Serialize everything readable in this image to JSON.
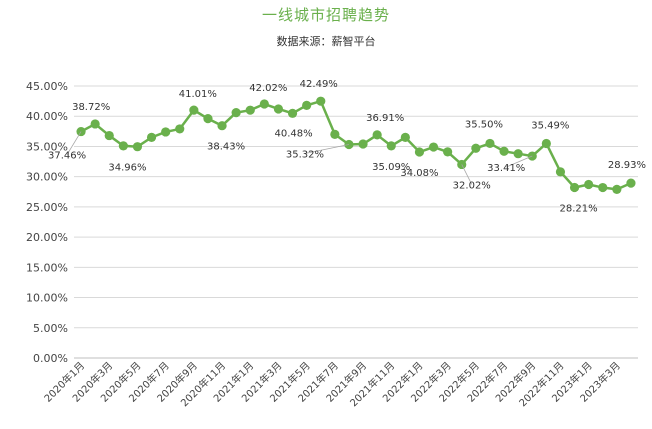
{
  "chart_data": {
    "type": "line",
    "title": "一线城市招聘趋势",
    "subtitle": "数据来源：薪智平台",
    "y_tick_labels": [
      "0.00%",
      "5.00%",
      "10.00%",
      "15.00%",
      "20.00%",
      "25.00%",
      "30.00%",
      "35.00%",
      "40.00%",
      "45.00%"
    ],
    "ylim": [
      0,
      45
    ],
    "grid": true,
    "x_tick_labels": [
      "2020年1月",
      "2020年3月",
      "2020年5月",
      "2020年7月",
      "2020年9月",
      "2020年11月",
      "2021年1月",
      "2021年3月",
      "2021年5月",
      "2021年7月",
      "2021年9月",
      "2021年11月",
      "2022年1月",
      "2022年3月",
      "2022年5月",
      "2022年7月",
      "2022年9月",
      "2022年11月",
      "2023年1月",
      "2023年3月"
    ],
    "x": [
      "2020年1月",
      "2020年2月",
      "2020年3月",
      "2020年4月",
      "2020年5月",
      "2020年6月",
      "2020年7月",
      "2020年8月",
      "2020年9月",
      "2020年10月",
      "2020年11月",
      "2020年12月",
      "2021年1月",
      "2021年2月",
      "2021年3月",
      "2021年4月",
      "2021年5月",
      "2021年6月",
      "2021年7月",
      "2021年8月",
      "2021年9月",
      "2021年10月",
      "2021年11月",
      "2021年12月",
      "2022年1月",
      "2022年2月",
      "2022年3月",
      "2022年4月",
      "2022年5月",
      "2022年6月",
      "2022年7月",
      "2022年8月",
      "2022年9月",
      "2022年10月",
      "2022年11月",
      "2022年12月",
      "2023年1月",
      "2023年2月",
      "2023年3月",
      "2023年4月"
    ],
    "series": [
      {
        "color": "#6ab04c",
        "values": [
          37.46,
          38.72,
          36.8,
          35.1,
          34.96,
          36.5,
          37.4,
          37.9,
          41.01,
          39.6,
          38.43,
          40.6,
          41.0,
          42.02,
          41.2,
          40.48,
          41.8,
          42.49,
          37.0,
          35.32,
          35.4,
          36.91,
          35.09,
          36.5,
          34.08,
          34.9,
          34.1,
          32.02,
          34.7,
          35.5,
          34.2,
          33.8,
          33.41,
          35.49,
          30.8,
          28.21,
          28.7,
          28.2,
          27.9,
          28.93
        ]
      }
    ],
    "data_labels": [
      {
        "index": 0,
        "text": "37.46%"
      },
      {
        "index": 1,
        "text": "38.72%"
      },
      {
        "index": 4,
        "text": "34.96%"
      },
      {
        "index": 8,
        "text": "41.01%"
      },
      {
        "index": 10,
        "text": "38.43%"
      },
      {
        "index": 13,
        "text": "42.02%"
      },
      {
        "index": 15,
        "text": "40.48%"
      },
      {
        "index": 17,
        "text": "42.49%"
      },
      {
        "index": 19,
        "text": "35.32%"
      },
      {
        "index": 21,
        "text": "36.91%"
      },
      {
        "index": 22,
        "text": "35.09%"
      },
      {
        "index": 24,
        "text": "34.08%"
      },
      {
        "index": 27,
        "text": "32.02%"
      },
      {
        "index": 29,
        "text": "35.50%"
      },
      {
        "index": 32,
        "text": "33.41%"
      },
      {
        "index": 33,
        "text": "35.49%"
      },
      {
        "index": 35,
        "text": "28.21%"
      },
      {
        "index": 39,
        "text": "28.93%"
      }
    ]
  }
}
